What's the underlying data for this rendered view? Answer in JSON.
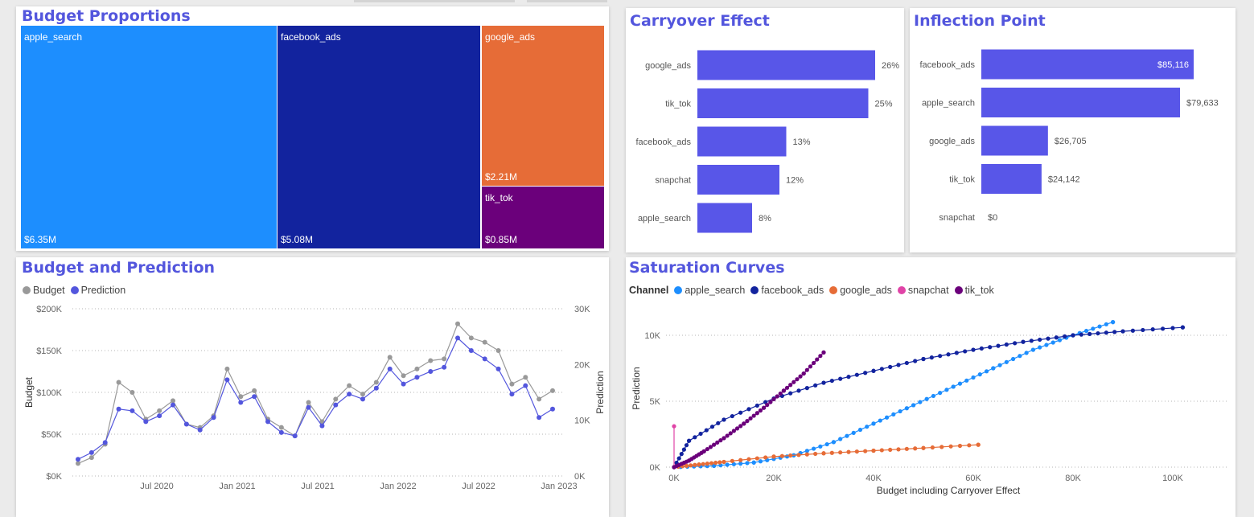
{
  "colors": {
    "title": "#5356dd",
    "bar": "#5856e8",
    "apple_search": "#1d8efe",
    "facebook_ads": "#12239e",
    "google_ads": "#e66c37",
    "snapchat": "#e044a7",
    "tik_tok": "#6b007b",
    "budget": "#999999",
    "prediction": "#5356dd"
  },
  "treemap": {
    "title": "Budget Proportions",
    "tiles": [
      {
        "name": "apple_search",
        "value": 6.35,
        "label": "apple_search",
        "value_label": "$6.35M",
        "color": "#1d8efe"
      },
      {
        "name": "facebook_ads",
        "value": 5.08,
        "label": "facebook_ads",
        "value_label": "$5.08M",
        "color": "#12239e"
      },
      {
        "name": "google_ads",
        "value": 2.21,
        "label": "google_ads",
        "value_label": "$2.21M",
        "color": "#e66c37"
      },
      {
        "name": "tik_tok",
        "value": 0.85,
        "label": "tik_tok",
        "value_label": "$0.85M",
        "color": "#6b007b"
      }
    ]
  },
  "carryover": {
    "title": "Carryover Effect",
    "categories": [
      "google_ads",
      "tik_tok",
      "facebook_ads",
      "snapchat",
      "apple_search"
    ],
    "values": [
      26,
      25,
      13,
      12,
      8
    ],
    "labels": [
      "26%",
      "25%",
      "13%",
      "12%",
      "8%"
    ]
  },
  "inflection": {
    "title": "Inflection Point",
    "categories": [
      "facebook_ads",
      "apple_search",
      "google_ads",
      "tik_tok",
      "snapchat"
    ],
    "values": [
      85116,
      79633,
      26705,
      24142,
      0
    ],
    "labels": [
      "$85,116",
      "$79,633",
      "$26,705",
      "$24,142",
      "$0"
    ]
  },
  "timeseries": {
    "title": "Budget and Prediction",
    "legend": [
      "Budget",
      "Prediction"
    ],
    "ylabel_left": "Budget",
    "ylabel_right": "Prediction",
    "yticks_left": [
      "$200K",
      "$150K",
      "$100K",
      "$50K",
      "$0K"
    ],
    "yticks_right": [
      "30K",
      "20K",
      "10K",
      "0K"
    ],
    "xticks": [
      "Jul 2020",
      "Jan 2021",
      "Jul 2021",
      "Jan 2022",
      "Jul 2022",
      "Jan 2023"
    ]
  },
  "saturation": {
    "title": "Saturation Curves",
    "legend_title": "Channel",
    "channels": [
      "apple_search",
      "facebook_ads",
      "google_ads",
      "snapchat",
      "tik_tok"
    ],
    "xlabel": "Budget including Carryover Effect",
    "ylabel": "Prediction",
    "xticks": [
      "0K",
      "20K",
      "40K",
      "60K",
      "80K",
      "100K"
    ],
    "yticks": [
      "10K",
      "5K",
      "0K"
    ]
  },
  "chart_data": [
    {
      "type": "treemap",
      "title": "Budget Proportions",
      "categories": [
        "apple_search",
        "facebook_ads",
        "google_ads",
        "tik_tok"
      ],
      "values": [
        6.35,
        5.08,
        2.21,
        0.85
      ],
      "unit": "$M"
    },
    {
      "type": "bar",
      "orientation": "horizontal",
      "title": "Carryover Effect",
      "categories": [
        "google_ads",
        "tik_tok",
        "facebook_ads",
        "snapchat",
        "apple_search"
      ],
      "values": [
        26,
        25,
        13,
        12,
        8
      ],
      "unit": "%"
    },
    {
      "type": "bar",
      "orientation": "horizontal",
      "title": "Inflection Point",
      "categories": [
        "facebook_ads",
        "apple_search",
        "google_ads",
        "tik_tok",
        "snapchat"
      ],
      "values": [
        85116,
        79633,
        26705,
        24142,
        0
      ],
      "unit": "$"
    },
    {
      "type": "line",
      "title": "Budget and Prediction",
      "xlabel": "",
      "ylabel": "Budget",
      "y2label": "Prediction",
      "ylim": [
        0,
        200000
      ],
      "y2lim": [
        0,
        30000
      ],
      "x": [
        "2020-02",
        "2020-03",
        "2020-04",
        "2020-05",
        "2020-06",
        "2020-07",
        "2020-08",
        "2020-09",
        "2020-10",
        "2020-11",
        "2020-12",
        "2021-01",
        "2021-02",
        "2021-03",
        "2021-04",
        "2021-05",
        "2021-06",
        "2021-07",
        "2021-08",
        "2021-09",
        "2021-10",
        "2021-11",
        "2021-12",
        "2022-01",
        "2022-02",
        "2022-03",
        "2022-04",
        "2022-05",
        "2022-06",
        "2022-07",
        "2022-08",
        "2022-09",
        "2022-10",
        "2022-11",
        "2022-12",
        "2023-01"
      ],
      "series": [
        {
          "name": "Budget",
          "axis": "left",
          "values": [
            15000,
            22000,
            38000,
            112000,
            100000,
            68000,
            78000,
            90000,
            62000,
            58000,
            72000,
            128000,
            95000,
            102000,
            68000,
            58000,
            48000,
            88000,
            65000,
            92000,
            108000,
            98000,
            112000,
            142000,
            120000,
            128000,
            138000,
            140000,
            182000,
            165000,
            160000,
            150000,
            110000,
            118000,
            92000,
            102000
          ]
        },
        {
          "name": "Prediction",
          "axis": "left",
          "values": [
            20000,
            28000,
            40000,
            80000,
            78000,
            65000,
            72000,
            85000,
            62000,
            55000,
            70000,
            115000,
            88000,
            95000,
            65000,
            52000,
            48000,
            82000,
            60000,
            85000,
            98000,
            92000,
            105000,
            128000,
            110000,
            118000,
            125000,
            130000,
            165000,
            150000,
            140000,
            128000,
            98000,
            108000,
            70000,
            80000
          ]
        }
      ]
    },
    {
      "type": "scatter",
      "title": "Saturation Curves",
      "xlabel": "Budget including Carryover Effect",
      "ylabel": "Prediction",
      "xlim": [
        0,
        110000
      ],
      "ylim": [
        0,
        11500
      ],
      "series": [
        {
          "name": "apple_search",
          "x": [
            0,
            8000,
            16000,
            24000,
            32000,
            40000,
            48000,
            56000,
            64000,
            72000,
            80000,
            88000
          ],
          "y": [
            0,
            100,
            350,
            900,
            1900,
            3300,
            4700,
            6100,
            7500,
            8900,
            10000,
            11000
          ]
        },
        {
          "name": "facebook_ads",
          "x": [
            0,
            3000,
            10000,
            20000,
            30000,
            40000,
            50000,
            60000,
            70000,
            80000,
            90000,
            102000
          ],
          "y": [
            0,
            2000,
            3600,
            5200,
            6400,
            7300,
            8200,
            8900,
            9500,
            10000,
            10300,
            10600
          ]
        },
        {
          "name": "google_ads",
          "x": [
            0,
            5000,
            10000,
            20000,
            30000,
            40000,
            50000,
            61000
          ],
          "y": [
            0,
            200,
            400,
            800,
            1050,
            1250,
            1450,
            1700
          ]
        },
        {
          "name": "snapchat",
          "x": [
            0,
            0
          ],
          "y": [
            0,
            3100
          ]
        },
        {
          "name": "tik_tok",
          "x": [
            0,
            3000,
            6000,
            10000,
            14000,
            18000,
            22000,
            26000,
            30000
          ],
          "y": [
            0,
            500,
            1200,
            2200,
            3300,
            4500,
            5800,
            7100,
            8700
          ]
        }
      ]
    }
  ]
}
